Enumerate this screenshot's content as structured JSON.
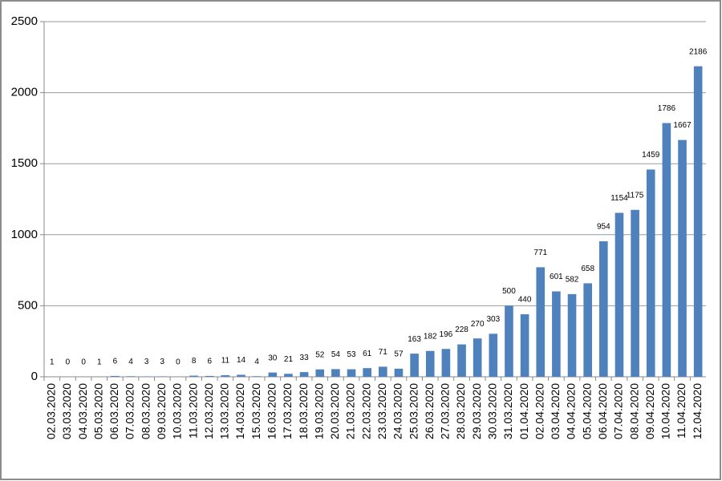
{
  "chart_data": {
    "type": "bar",
    "categories": [
      "02.03.2020",
      "03.03.2020",
      "04.03.2020",
      "05.03.2020",
      "06.03.2020",
      "07.03.2020",
      "08.03.2020",
      "09.03.2020",
      "10.03.2020",
      "11.03.2020",
      "12.03.2020",
      "13.03.2020",
      "14.03.2020",
      "15.03.2020",
      "16.03.2020",
      "17.03.2020",
      "18.03.2020",
      "19.03.2020",
      "20.03.2020",
      "21.03.2020",
      "22.03.2020",
      "23.03.2020",
      "24.03.2020",
      "25.03.2020",
      "26.03.2020",
      "27.03.2020",
      "28.03.2020",
      "29.03.2020",
      "30.03.2020",
      "31.03.2020",
      "01.04.2020",
      "02.04.2020",
      "03.04.2020",
      "04.04.2020",
      "05.04.2020",
      "06.04.2020",
      "07.04.2020",
      "08.04.2020",
      "09.04.2020",
      "10.04.2020",
      "11.04.2020",
      "12.04.2020"
    ],
    "values": [
      1,
      0,
      0,
      1,
      6,
      4,
      3,
      3,
      0,
      8,
      6,
      11,
      14,
      4,
      30,
      21,
      33,
      52,
      54,
      53,
      61,
      71,
      57,
      163,
      182,
      196,
      228,
      270,
      303,
      500,
      440,
      771,
      601,
      582,
      658,
      954,
      1154,
      1175,
      1459,
      1786,
      1667,
      2186
    ],
    "color": "#4f81bd",
    "ylim": [
      0,
      2500
    ],
    "yticks": [
      0,
      500,
      1000,
      1500,
      2000,
      2500
    ],
    "grid": true
  }
}
